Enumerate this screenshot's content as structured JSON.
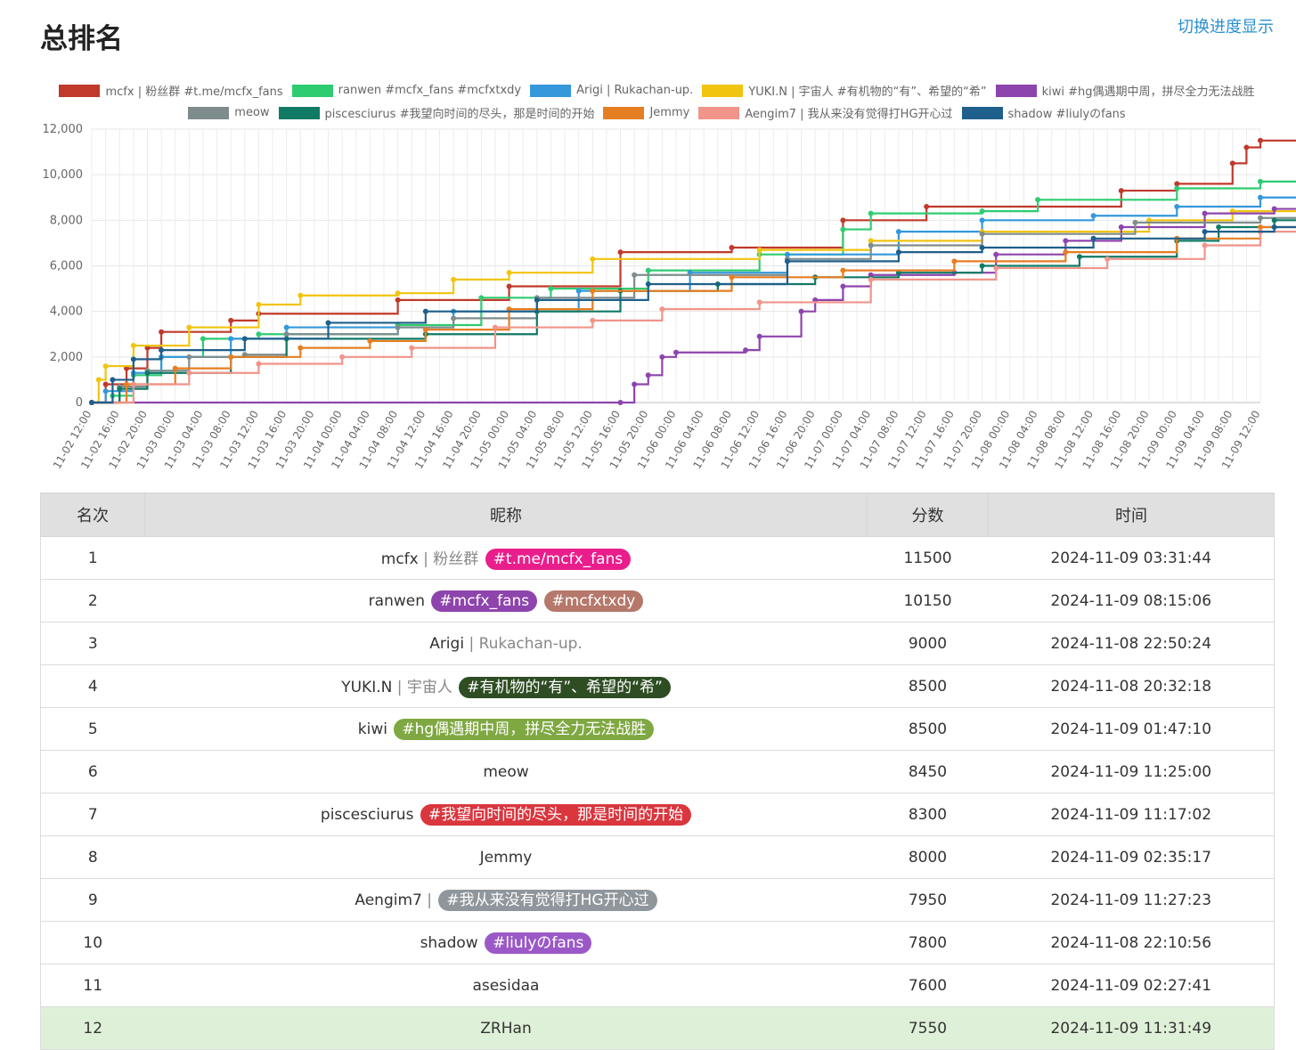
{
  "page": {
    "title": "总排名",
    "toggle_link": "切换进度显示"
  },
  "chart_data": {
    "type": "line",
    "title": "",
    "ylim": [
      0,
      12000
    ],
    "y_ticks": [
      "0",
      "2,000",
      "4,000",
      "6,000",
      "8,000",
      "10,000",
      "12,000"
    ],
    "x_ticks": [
      "11-02 12:00",
      "11-02 16:00",
      "11-02 20:00",
      "11-03 00:00",
      "11-03 04:00",
      "11-03 08:00",
      "11-03 12:00",
      "11-03 16:00",
      "11-03 20:00",
      "11-04 00:00",
      "11-04 04:00",
      "11-04 08:00",
      "11-04 12:00",
      "11-04 16:00",
      "11-04 20:00",
      "11-05 00:00",
      "11-05 04:00",
      "11-05 08:00",
      "11-05 12:00",
      "11-05 16:00",
      "11-05 20:00",
      "11-06 00:00",
      "11-06 04:00",
      "11-06 08:00",
      "11-06 12:00",
      "11-06 16:00",
      "11-06 20:00",
      "11-07 00:00",
      "11-07 04:00",
      "11-07 08:00",
      "11-07 12:00",
      "11-07 16:00",
      "11-07 20:00",
      "11-08 00:00",
      "11-08 04:00",
      "11-08 08:00",
      "11-08 12:00",
      "11-08 16:00",
      "11-08 20:00",
      "11-09 00:00",
      "11-09 04:00",
      "11-09 08:00",
      "11-09 12:00"
    ],
    "x_unit_note": "x values are hours since 11-02 12:00",
    "series": [
      {
        "name": "mcfx | 粉丝群 #t.me/mcfx_fans",
        "color": "#c0392b",
        "points": [
          [
            0,
            0
          ],
          [
            2,
            800
          ],
          [
            5,
            1500
          ],
          [
            8,
            2400
          ],
          [
            10,
            3100
          ],
          [
            20,
            3600
          ],
          [
            24,
            3900
          ],
          [
            44,
            4500
          ],
          [
            60,
            5100
          ],
          [
            76,
            6600
          ],
          [
            92,
            6800
          ],
          [
            108,
            8000
          ],
          [
            120,
            8600
          ],
          [
            148,
            9300
          ],
          [
            156,
            9600
          ],
          [
            164,
            10500
          ],
          [
            166,
            11200
          ],
          [
            168,
            11500
          ],
          [
            180,
            11500
          ]
        ]
      },
      {
        "name": "ranwen #mcfx_fans #mcfxtxdy",
        "color": "#2ecc71",
        "points": [
          [
            0,
            0
          ],
          [
            3,
            300
          ],
          [
            6,
            1200
          ],
          [
            10,
            2000
          ],
          [
            16,
            2800
          ],
          [
            24,
            3000
          ],
          [
            44,
            3400
          ],
          [
            56,
            4600
          ],
          [
            66,
            5000
          ],
          [
            80,
            5800
          ],
          [
            96,
            6500
          ],
          [
            108,
            7600
          ],
          [
            112,
            8300
          ],
          [
            128,
            8400
          ],
          [
            136,
            8900
          ],
          [
            156,
            9400
          ],
          [
            168,
            9700
          ],
          [
            174,
            10150
          ],
          [
            180,
            10150
          ]
        ]
      },
      {
        "name": "Arigi | Rukachan-up.",
        "color": "#3498db",
        "points": [
          [
            0,
            0
          ],
          [
            2,
            500
          ],
          [
            6,
            1300
          ],
          [
            10,
            2000
          ],
          [
            20,
            2800
          ],
          [
            28,
            3300
          ],
          [
            52,
            4000
          ],
          [
            70,
            4900
          ],
          [
            86,
            5700
          ],
          [
            100,
            6500
          ],
          [
            116,
            7500
          ],
          [
            128,
            8000
          ],
          [
            144,
            8200
          ],
          [
            156,
            8600
          ],
          [
            168,
            9000
          ],
          [
            180,
            9000
          ]
        ]
      },
      {
        "name": "YUKI.N | 宇宙人 #有机物的“有”、希望的“希”",
        "color": "#f1c40f",
        "points": [
          [
            0,
            0
          ],
          [
            1,
            1000
          ],
          [
            2,
            1600
          ],
          [
            6,
            2500
          ],
          [
            14,
            3300
          ],
          [
            24,
            4300
          ],
          [
            30,
            4700
          ],
          [
            44,
            4800
          ],
          [
            52,
            5400
          ],
          [
            60,
            5700
          ],
          [
            72,
            6300
          ],
          [
            96,
            6700
          ],
          [
            112,
            7100
          ],
          [
            128,
            7500
          ],
          [
            152,
            8000
          ],
          [
            164,
            8400
          ],
          [
            180,
            8500
          ]
        ]
      },
      {
        "name": "kiwi #hg偶遇期中周，拼尽全力无法战胜",
        "color": "#8e44ad",
        "points": [
          [
            0,
            0
          ],
          [
            76,
            0
          ],
          [
            78,
            800
          ],
          [
            80,
            1200
          ],
          [
            82,
            2000
          ],
          [
            84,
            2200
          ],
          [
            94,
            2300
          ],
          [
            96,
            2900
          ],
          [
            102,
            4000
          ],
          [
            104,
            4500
          ],
          [
            108,
            5100
          ],
          [
            112,
            5600
          ],
          [
            124,
            5700
          ],
          [
            130,
            6500
          ],
          [
            140,
            7100
          ],
          [
            148,
            7700
          ],
          [
            160,
            8300
          ],
          [
            170,
            8500
          ],
          [
            180,
            8500
          ]
        ]
      },
      {
        "name": "meow",
        "color": "#7f8c8d",
        "points": [
          [
            0,
            0
          ],
          [
            4,
            700
          ],
          [
            8,
            1400
          ],
          [
            14,
            2000
          ],
          [
            22,
            2100
          ],
          [
            28,
            3000
          ],
          [
            44,
            3300
          ],
          [
            52,
            3700
          ],
          [
            64,
            4600
          ],
          [
            78,
            5600
          ],
          [
            100,
            6300
          ],
          [
            112,
            6900
          ],
          [
            128,
            7400
          ],
          [
            150,
            7900
          ],
          [
            168,
            8100
          ],
          [
            178,
            8450
          ],
          [
            180,
            8450
          ]
        ]
      },
      {
        "name": "piscesciurus #我望向时间的尽头，那是时间的开始",
        "color": "#117a65",
        "points": [
          [
            0,
            0
          ],
          [
            4,
            600
          ],
          [
            8,
            1300
          ],
          [
            20,
            2000
          ],
          [
            28,
            2800
          ],
          [
            48,
            3000
          ],
          [
            64,
            4000
          ],
          [
            76,
            4900
          ],
          [
            90,
            5200
          ],
          [
            104,
            5500
          ],
          [
            116,
            5700
          ],
          [
            128,
            6000
          ],
          [
            142,
            6400
          ],
          [
            156,
            7100
          ],
          [
            162,
            7700
          ],
          [
            170,
            8000
          ],
          [
            178,
            8300
          ],
          [
            180,
            8300
          ]
        ]
      },
      {
        "name": "Jemmy",
        "color": "#e67e22",
        "points": [
          [
            0,
            0
          ],
          [
            5,
            800
          ],
          [
            12,
            1500
          ],
          [
            20,
            2000
          ],
          [
            30,
            2400
          ],
          [
            40,
            2700
          ],
          [
            48,
            3200
          ],
          [
            60,
            4100
          ],
          [
            72,
            4900
          ],
          [
            92,
            5500
          ],
          [
            108,
            5800
          ],
          [
            124,
            6200
          ],
          [
            140,
            6600
          ],
          [
            156,
            7200
          ],
          [
            168,
            7700
          ],
          [
            180,
            8000
          ]
        ]
      },
      {
        "name": "Aengim7 | 我从来没有觉得打HG开心过",
        "color": "#f1948a",
        "points": [
          [
            0,
            0
          ],
          [
            6,
            800
          ],
          [
            14,
            1300
          ],
          [
            24,
            1700
          ],
          [
            36,
            2000
          ],
          [
            46,
            2400
          ],
          [
            58,
            3300
          ],
          [
            72,
            3600
          ],
          [
            82,
            4100
          ],
          [
            96,
            4400
          ],
          [
            112,
            5400
          ],
          [
            130,
            5900
          ],
          [
            146,
            6300
          ],
          [
            160,
            6900
          ],
          [
            168,
            7500
          ],
          [
            180,
            7950
          ]
        ]
      },
      {
        "name": "shadow #liulyのfans",
        "color": "#1f5f8b",
        "points": [
          [
            0,
            0
          ],
          [
            3,
            1000
          ],
          [
            6,
            1900
          ],
          [
            10,
            2300
          ],
          [
            22,
            2800
          ],
          [
            34,
            3500
          ],
          [
            48,
            4000
          ],
          [
            64,
            4500
          ],
          [
            80,
            5200
          ],
          [
            100,
            6200
          ],
          [
            116,
            6600
          ],
          [
            128,
            6800
          ],
          [
            144,
            7200
          ],
          [
            160,
            7500
          ],
          [
            170,
            7700
          ],
          [
            178,
            7800
          ],
          [
            180,
            7800
          ]
        ]
      }
    ]
  },
  "table": {
    "headers": {
      "rank": "名次",
      "name": "昵称",
      "score": "分数",
      "time": "时间"
    },
    "rows": [
      {
        "rank": "1",
        "name": "mcfx",
        "sep": " | 粉丝群",
        "badges": [
          {
            "text": "#t.me/mcfx_fans",
            "color": "#e91e8c"
          }
        ],
        "score": "11500",
        "time": "2024-11-09 03:31:44"
      },
      {
        "rank": "2",
        "name": "ranwen",
        "sep": "",
        "badges": [
          {
            "text": "#mcfx_fans",
            "color": "#8e44ad"
          },
          {
            "text": "#mcfxtxdy",
            "color": "#b5786a"
          }
        ],
        "score": "10150",
        "time": "2024-11-09 08:15:06"
      },
      {
        "rank": "3",
        "name": "Arigi",
        "sep": " | Rukachan-up.",
        "badges": [],
        "score": "9000",
        "time": "2024-11-08 22:50:24"
      },
      {
        "rank": "4",
        "name": "YUKI.N",
        "sep": " | 宇宙人",
        "badges": [
          {
            "text": "#有机物的“有”、希望的“希”",
            "color": "#2e4d23"
          }
        ],
        "score": "8500",
        "time": "2024-11-08 20:32:18"
      },
      {
        "rank": "5",
        "name": "kiwi",
        "sep": "",
        "badges": [
          {
            "text": "#hg偶遇期中周，拼尽全力无法战胜",
            "color": "#7fa843"
          }
        ],
        "score": "8500",
        "time": "2024-11-09 01:47:10"
      },
      {
        "rank": "6",
        "name": "meow",
        "sep": "",
        "badges": [],
        "score": "8450",
        "time": "2024-11-09 11:25:00"
      },
      {
        "rank": "7",
        "name": "piscesciurus",
        "sep": "",
        "badges": [
          {
            "text": "#我望向时间的尽头，那是时间的开始",
            "color": "#d9363e"
          }
        ],
        "score": "8300",
        "time": "2024-11-09 11:17:02"
      },
      {
        "rank": "8",
        "name": "Jemmy",
        "sep": "",
        "badges": [],
        "score": "8000",
        "time": "2024-11-09 02:35:17"
      },
      {
        "rank": "9",
        "name": "Aengim7",
        "sep": " |",
        "badges": [
          {
            "text": "#我从来没有觉得打HG开心过",
            "color": "#8f969c"
          }
        ],
        "score": "7950",
        "time": "2024-11-09 11:27:23"
      },
      {
        "rank": "10",
        "name": "shadow",
        "sep": "",
        "badges": [
          {
            "text": "#liulyのfans",
            "color": "#9b59c7"
          }
        ],
        "score": "7800",
        "time": "2024-11-08 22:10:56"
      },
      {
        "rank": "11",
        "name": "asesidaa",
        "sep": "",
        "badges": [],
        "score": "7600",
        "time": "2024-11-09 02:27:41"
      },
      {
        "rank": "12",
        "name": "ZRHan",
        "sep": "",
        "badges": [],
        "score": "7550",
        "time": "2024-11-09 11:31:49",
        "highlight": true
      }
    ]
  }
}
